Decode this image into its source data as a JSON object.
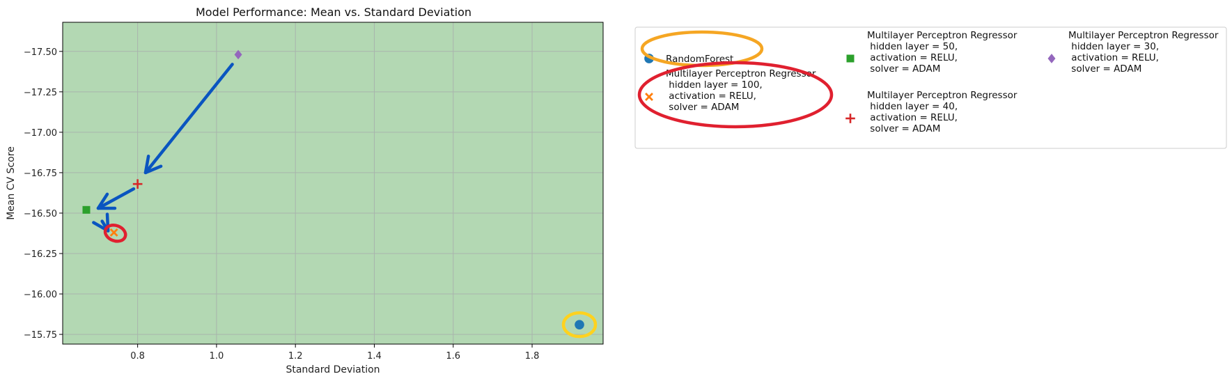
{
  "chart_data": {
    "type": "scatter",
    "title": "Model Performance: Mean vs. Standard Deviation",
    "xlabel": "Standard Deviation",
    "ylabel": "Mean CV Score",
    "xlim": [
      0.61,
      1.98
    ],
    "ylim": [
      -15.69,
      -17.68
    ],
    "y_inverted": true,
    "x_ticks": [
      0.8,
      1.0,
      1.2,
      1.4,
      1.6,
      1.8
    ],
    "x_tick_labels": [
      "0.8",
      "1.0",
      "1.2",
      "1.4",
      "1.6",
      "1.8"
    ],
    "y_ticks": [
      -17.5,
      -17.25,
      -17.0,
      -16.75,
      -16.5,
      -16.25,
      -16.0,
      -15.75
    ],
    "y_tick_labels": [
      "−17.50",
      "−17.25",
      "−17.00",
      "−16.75",
      "−16.50",
      "−16.25",
      "−16.00",
      "−15.75"
    ],
    "grid": true,
    "plot_background": "#b3d8b3",
    "legend_placement": "outside-right",
    "series": [
      {
        "name": "RandomForest",
        "marker": "circle",
        "color": "#1f77b4",
        "x": [
          1.92
        ],
        "y": [
          -15.81
        ]
      },
      {
        "name": "Multilayer Perceptron Regressor\n hidden layer = 100,\n activation = RELU,\n solver = ADAM",
        "marker": "x",
        "color": "#ff7f0e",
        "x": [
          0.74
        ],
        "y": [
          -16.38
        ]
      },
      {
        "name": "Multilayer Perceptron Regressor\n hidden layer = 50,\n activation = RELU,\n solver = ADAM",
        "marker": "square",
        "color": "#2ca02c",
        "x": [
          0.67
        ],
        "y": [
          -16.52
        ]
      },
      {
        "name": "Multilayer Perceptron Regressor\n hidden layer = 40,\n activation = RELU,\n solver = ADAM",
        "marker": "plus",
        "color": "#d62728",
        "x": [
          0.8
        ],
        "y": [
          -16.68
        ]
      },
      {
        "name": "Multilayer Perceptron Regressor\n hidden layer = 30,\n activation = RELU,\n solver = ADAM",
        "marker": "diamond",
        "color": "#9467bd",
        "x": [
          1.055
        ],
        "y": [
          -17.48
        ]
      }
    ],
    "annotations": {
      "arrow_color": "#0a55c0",
      "highlight_colors": [
        "#f5a623",
        "#e0202f",
        "#ffd21f"
      ],
      "arrows": [
        {
          "from": [
            1.04,
            -17.42
          ],
          "to": [
            0.82,
            -16.75
          ]
        },
        {
          "from": [
            0.79,
            -16.65
          ],
          "to": [
            0.7,
            -16.53
          ]
        },
        {
          "from": [
            0.71,
            -16.45
          ],
          "to": [
            0.725,
            -16.39
          ]
        }
      ]
    }
  }
}
